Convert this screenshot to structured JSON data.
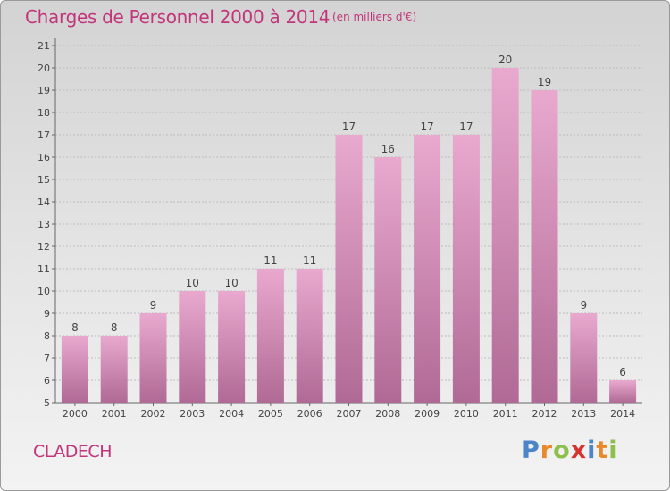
{
  "header": {
    "title": "Charges de Personnel 2000 à 2014",
    "unit": "(en milliers d'€)"
  },
  "footer": {
    "commune": "CLADECH",
    "brand": "Proxiti",
    "brand_letters": [
      {
        "char": "P",
        "color": "#4a86c8"
      },
      {
        "char": "r",
        "color": "#e88a2a"
      },
      {
        "char": "o",
        "color": "#8cc04a"
      },
      {
        "char": "x",
        "color": "#d8322f"
      },
      {
        "char": "i",
        "color": "#4a86c8"
      },
      {
        "char": "t",
        "color": "#e88a2a"
      },
      {
        "char": "i",
        "color": "#8cc04a"
      }
    ]
  },
  "colors": {
    "accent": "#c2357a",
    "bar_top": "#e9a9cf",
    "bar_bottom": "#b06a95"
  },
  "chart_data": {
    "type": "bar",
    "title": "Charges de Personnel 2000 à 2014",
    "subtitle": "(en milliers d'€)",
    "categories": [
      "2000",
      "2001",
      "2002",
      "2003",
      "2004",
      "2005",
      "2006",
      "2007",
      "2008",
      "2009",
      "2010",
      "2011",
      "2012",
      "2013",
      "2014"
    ],
    "values": [
      8,
      8,
      9,
      10,
      10,
      11,
      11,
      17,
      16,
      17,
      17,
      20,
      19,
      9,
      6
    ],
    "ylim": [
      5,
      21
    ],
    "yticks": [
      5,
      6,
      7,
      8,
      9,
      10,
      11,
      12,
      13,
      14,
      15,
      16,
      17,
      18,
      19,
      20,
      21
    ],
    "grid": true
  }
}
